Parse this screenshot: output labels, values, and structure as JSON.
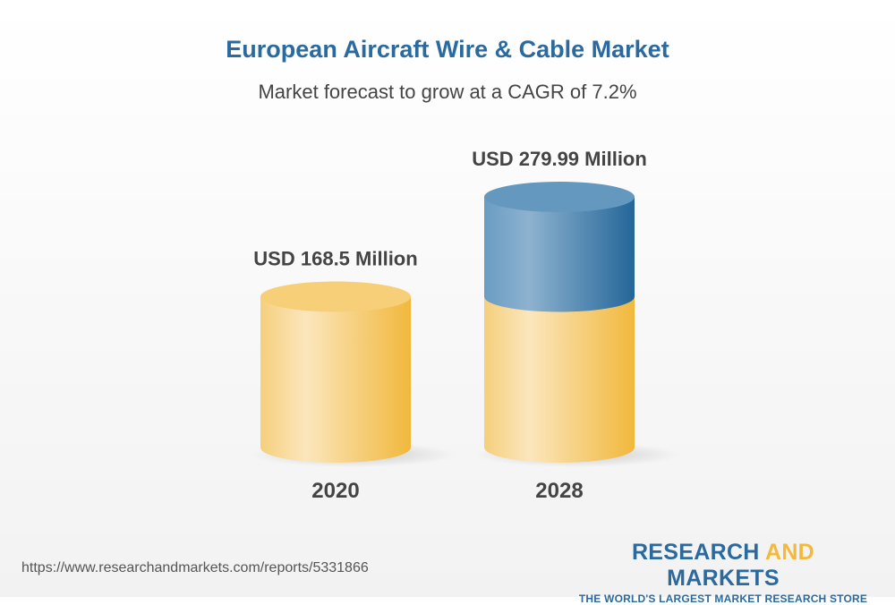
{
  "chart_data": {
    "type": "bar",
    "style": "3d-cylinder",
    "title": "European Aircraft Wire & Cable Market",
    "subtitle": "Market forecast to grow at a CAGR of 7.2%",
    "categories": [
      "2020",
      "2028"
    ],
    "values": [
      168.5,
      279.99
    ],
    "data_labels": [
      "USD 168.5 Million",
      "USD 279.99 Million"
    ],
    "unit": "USD Million",
    "colors": {
      "base": "#f3b93d",
      "growth": "#2a6a9e"
    }
  },
  "footer": {
    "url": "https://www.researchandmarkets.com/reports/5331866",
    "logo_part1": "RESEARCH ",
    "logo_part2": "AND",
    "logo_part3": " MARKETS",
    "logo_tagline": "THE WORLD'S LARGEST MARKET RESEARCH STORE"
  }
}
